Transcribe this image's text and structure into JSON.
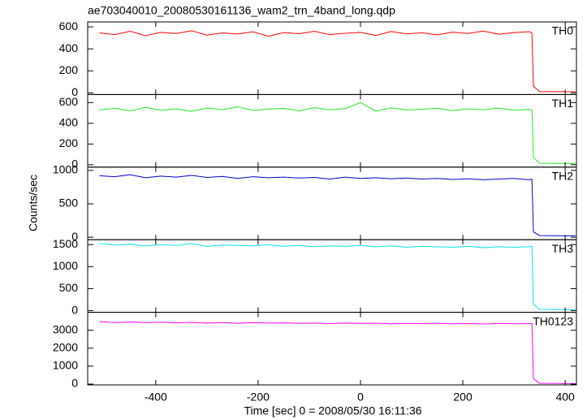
{
  "chart_data": [
    {
      "type": "line",
      "title": "ae703040010_20080530161136_wam2_trn_4band_long.qdp",
      "xlim": [
        -533,
        422
      ],
      "ylim": [
        -15,
        645
      ],
      "yticks": [
        0,
        200,
        400,
        600
      ],
      "x": [
        -510,
        -480,
        -450,
        -420,
        -390,
        -360,
        -330,
        -300,
        -270,
        -240,
        -210,
        -180,
        -150,
        -120,
        -90,
        -60,
        -30,
        0,
        30,
        60,
        90,
        120,
        150,
        180,
        210,
        240,
        270,
        300,
        330,
        335,
        338,
        350,
        420
      ],
      "series": [
        {
          "name": "TH0",
          "color": "#ff0000",
          "values": [
            545,
            530,
            560,
            520,
            550,
            540,
            565,
            525,
            545,
            535,
            555,
            515,
            548,
            538,
            560,
            530,
            542,
            550,
            522,
            558,
            536,
            546,
            528,
            552,
            540,
            562,
            533,
            548,
            556,
            545,
            60,
            12,
            10
          ]
        }
      ]
    },
    {
      "type": "line",
      "xlim": [
        -533,
        422
      ],
      "ylim": [
        -23,
        678
      ],
      "yticks": [
        0,
        200,
        400,
        600
      ],
      "x": [
        -510,
        -480,
        -450,
        -420,
        -390,
        -360,
        -330,
        -300,
        -270,
        -240,
        -210,
        -180,
        -150,
        -120,
        -90,
        -60,
        -30,
        0,
        30,
        60,
        90,
        120,
        150,
        180,
        210,
        240,
        270,
        300,
        330,
        335,
        338,
        350,
        420
      ],
      "series": [
        {
          "name": "TH1",
          "color": "#22e622",
          "values": [
            530,
            545,
            520,
            555,
            525,
            540,
            515,
            548,
            532,
            560,
            525,
            538,
            545,
            520,
            552,
            530,
            542,
            600,
            518,
            550,
            528,
            536,
            546,
            522,
            540,
            530,
            548,
            525,
            535,
            528,
            70,
            15,
            12
          ]
        }
      ]
    },
    {
      "type": "line",
      "y_label": "Counts/sec",
      "xlim": [
        -533,
        422
      ],
      "ylim": [
        -37,
        1049
      ],
      "yticks": [
        0,
        500,
        1000
      ],
      "x": [
        -510,
        -480,
        -450,
        -420,
        -390,
        -360,
        -330,
        -300,
        -270,
        -240,
        -210,
        -180,
        -150,
        -120,
        -90,
        -60,
        -30,
        0,
        30,
        60,
        90,
        120,
        150,
        180,
        210,
        240,
        270,
        300,
        330,
        335,
        338,
        350,
        420
      ],
      "series": [
        {
          "name": "TH2",
          "color": "#0000cc",
          "values": [
            920,
            905,
            935,
            890,
            915,
            900,
            925,
            895,
            910,
            880,
            905,
            890,
            900,
            885,
            895,
            870,
            900,
            880,
            890,
            875,
            885,
            870,
            880,
            865,
            875,
            860,
            870,
            880,
            860,
            870,
            80,
            25,
            20
          ]
        }
      ]
    },
    {
      "type": "line",
      "xlim": [
        -533,
        422
      ],
      "ylim": [
        -37,
        1611
      ],
      "yticks": [
        0,
        500,
        1000,
        1500
      ],
      "x": [
        -510,
        -480,
        -450,
        -420,
        -390,
        -360,
        -330,
        -300,
        -270,
        -240,
        -210,
        -180,
        -150,
        -120,
        -90,
        -60,
        -30,
        0,
        30,
        60,
        90,
        120,
        150,
        180,
        210,
        240,
        270,
        300,
        330,
        335,
        338,
        350,
        420
      ],
      "series": [
        {
          "name": "TH3",
          "color": "#00e5ee",
          "values": [
            1530,
            1490,
            1510,
            1470,
            1500,
            1480,
            1520,
            1460,
            1490,
            1480,
            1470,
            1500,
            1460,
            1480,
            1450,
            1470,
            1460,
            1480,
            1450,
            1470,
            1440,
            1460,
            1450,
            1440,
            1460,
            1430,
            1450,
            1440,
            1450,
            1460,
            150,
            30,
            25
          ]
        }
      ]
    },
    {
      "type": "line",
      "x_label": "Time [sec] 0 = 2008/05/30 16:11:36",
      "xlim": [
        -533,
        422
      ],
      "ylim": [
        -45,
        4000
      ],
      "yticks": [
        0,
        1000,
        2000,
        3000
      ],
      "xticks": [
        -400,
        -200,
        0,
        200,
        400
      ],
      "x": [
        -510,
        -480,
        -450,
        -420,
        -390,
        -360,
        -330,
        -300,
        -270,
        -240,
        -210,
        -180,
        -150,
        -120,
        -90,
        -60,
        -30,
        0,
        30,
        60,
        90,
        120,
        150,
        180,
        210,
        240,
        270,
        300,
        330,
        335,
        338,
        350,
        420
      ],
      "series": [
        {
          "name": "TH0123",
          "color": "#ff00ff",
          "values": [
            3480,
            3430,
            3460,
            3420,
            3450,
            3410,
            3440,
            3400,
            3430,
            3390,
            3420,
            3400,
            3410,
            3380,
            3400,
            3370,
            3400,
            3380,
            3390,
            3360,
            3380,
            3370,
            3390,
            3360,
            3370,
            3350,
            3380,
            3360,
            3370,
            3380,
            300,
            40,
            30
          ]
        }
      ]
    }
  ]
}
